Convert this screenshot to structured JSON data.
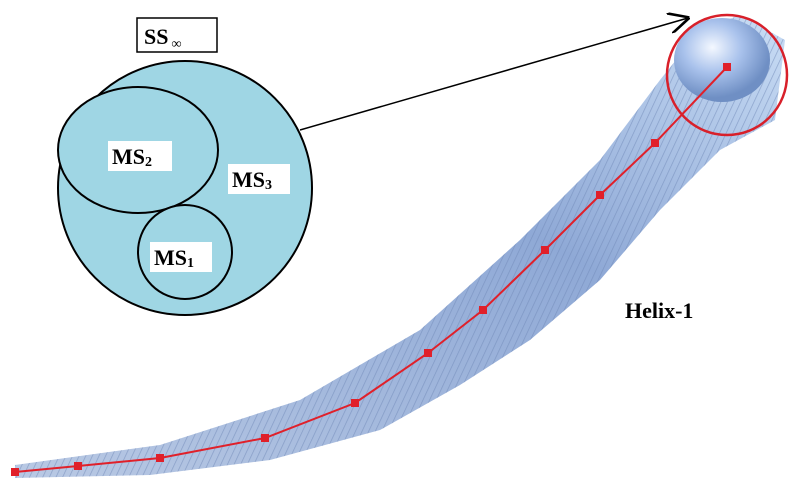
{
  "diagram": {
    "set_label": {
      "main": "SS",
      "sub": "∞"
    },
    "circles": [
      {
        "main": "MS",
        "sub": "2"
      },
      {
        "main": "MS",
        "sub": "3"
      },
      {
        "main": "MS",
        "sub": "1"
      }
    ],
    "helix_label": "Helix-1"
  }
}
